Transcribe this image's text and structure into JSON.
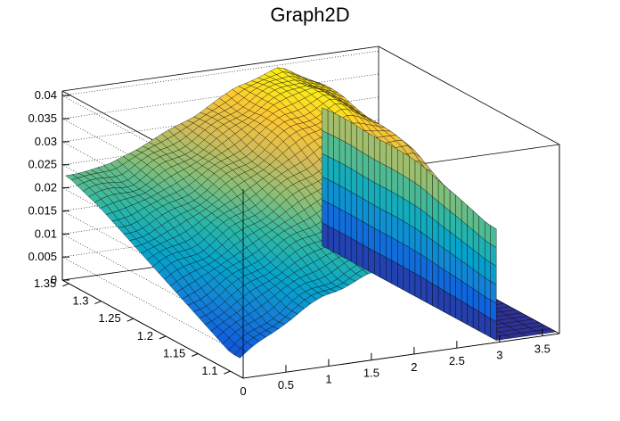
{
  "chart_data": {
    "type": "surface",
    "title": "Graph2D",
    "xlabel": "",
    "ylabel": "",
    "zlabel": "",
    "xlim": [
      0,
      3.7
    ],
    "ylim": [
      1.08,
      1.36
    ],
    "zlim": [
      0,
      0.041
    ],
    "x_ticks": [
      "0",
      "0.5",
      "1",
      "1.5",
      "2",
      "2.5",
      "3",
      "3.5"
    ],
    "y_ticks": [
      "1.1",
      "1.15",
      "1.2",
      "1.25",
      "1.3",
      "1.35"
    ],
    "z_ticks": [
      "0",
      "0.005",
      "0.01",
      "0.015",
      "0.02",
      "0.025",
      "0.03",
      "0.035",
      "0.04"
    ],
    "x_grid": [
      0,
      0.5,
      1,
      1.5,
      2,
      2.5,
      2.9,
      3.0
    ],
    "y_grid": [
      1.1,
      1.15,
      1.2,
      1.25,
      1.3,
      1.35
    ],
    "z_values": [
      [
        0.004,
        0.008,
        0.012,
        0.016,
        0.02,
        0.023
      ],
      [
        0.01,
        0.013,
        0.016,
        0.019,
        0.022,
        0.024
      ],
      [
        0.015,
        0.018,
        0.021,
        0.024,
        0.026,
        0.028
      ],
      [
        0.018,
        0.022,
        0.026,
        0.029,
        0.031,
        0.032
      ],
      [
        0.02,
        0.026,
        0.031,
        0.035,
        0.037,
        0.037
      ],
      [
        0.022,
        0.028,
        0.034,
        0.038,
        0.04,
        0.04
      ],
      [
        0.024,
        0.029,
        0.033,
        0.035,
        0.036,
        0.036
      ],
      [
        0.024,
        0.027,
        0.029,
        0.03,
        0.03,
        0.03
      ]
    ],
    "drop_edge_x": 3.0,
    "floor_block_x": [
      3.0,
      3.7
    ],
    "colorscale": [
      "#352a87",
      "#0f5cdd",
      "#1481d6",
      "#06a4ca",
      "#2eb7a4",
      "#87bf77",
      "#d1bb59",
      "#fec832",
      "#f9fb0e"
    ],
    "grid": true,
    "legend": "none"
  }
}
